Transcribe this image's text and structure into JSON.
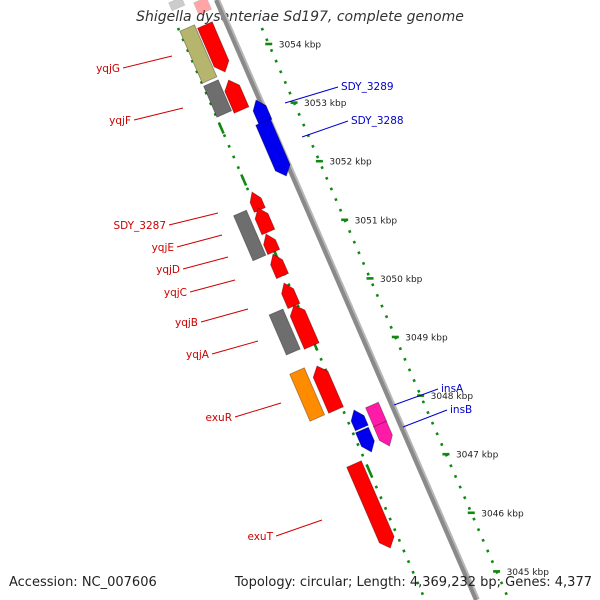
{
  "title": "Shigella dysenteriae Sd197, complete genome",
  "footer": {
    "accession": "Accession: NC_007606",
    "topology": "Topology: circular; Length: 4,369,232 bp; Genes: 4,377"
  },
  "colors": {
    "backbone": "#8a8a8a",
    "ticks": "#118811",
    "forward_label": "#cc0000",
    "reverse_label": "#0000cc",
    "red_gene": "#ff0000",
    "gray_gene": "#6e6e6e",
    "olive_gene": "#b5b56e",
    "orange_gene": "#ff8c00",
    "blue_gene": "#0000ee",
    "magenta_gene": "#ff1aa8"
  },
  "kbp_ticks": [
    {
      "label": "3054 kbp",
      "kbp": 3054
    },
    {
      "label": "3053 kbp",
      "kbp": 3053
    },
    {
      "label": "3052 kbp",
      "kbp": 3052
    },
    {
      "label": "3051 kbp",
      "kbp": 3051
    },
    {
      "label": "3050 kbp",
      "kbp": 3050
    },
    {
      "label": "3049 kbp",
      "kbp": 3049
    },
    {
      "label": "3048 kbp",
      "kbp": 3048
    },
    {
      "label": "3047 kbp",
      "kbp": 3047
    },
    {
      "label": "3046 kbp",
      "kbp": 3046
    },
    {
      "label": "3045 kbp",
      "kbp": 3045
    }
  ],
  "gene_labels": [
    {
      "name": "yqjG",
      "strand": "forward"
    },
    {
      "name": "yqjF",
      "strand": "forward"
    },
    {
      "name": "SDY_3287",
      "strand": "forward"
    },
    {
      "name": "yqjE",
      "strand": "forward"
    },
    {
      "name": "yqjD",
      "strand": "forward"
    },
    {
      "name": "yqjC",
      "strand": "forward"
    },
    {
      "name": "yqjB",
      "strand": "forward"
    },
    {
      "name": "yqjA",
      "strand": "forward"
    },
    {
      "name": "exuR",
      "strand": "forward"
    },
    {
      "name": "exuT",
      "strand": "forward"
    },
    {
      "name": "SDY_3289",
      "strand": "reverse"
    },
    {
      "name": "SDY_3288",
      "strand": "reverse"
    },
    {
      "name": "insA",
      "strand": "reverse"
    },
    {
      "name": "insB",
      "strand": "reverse"
    }
  ]
}
